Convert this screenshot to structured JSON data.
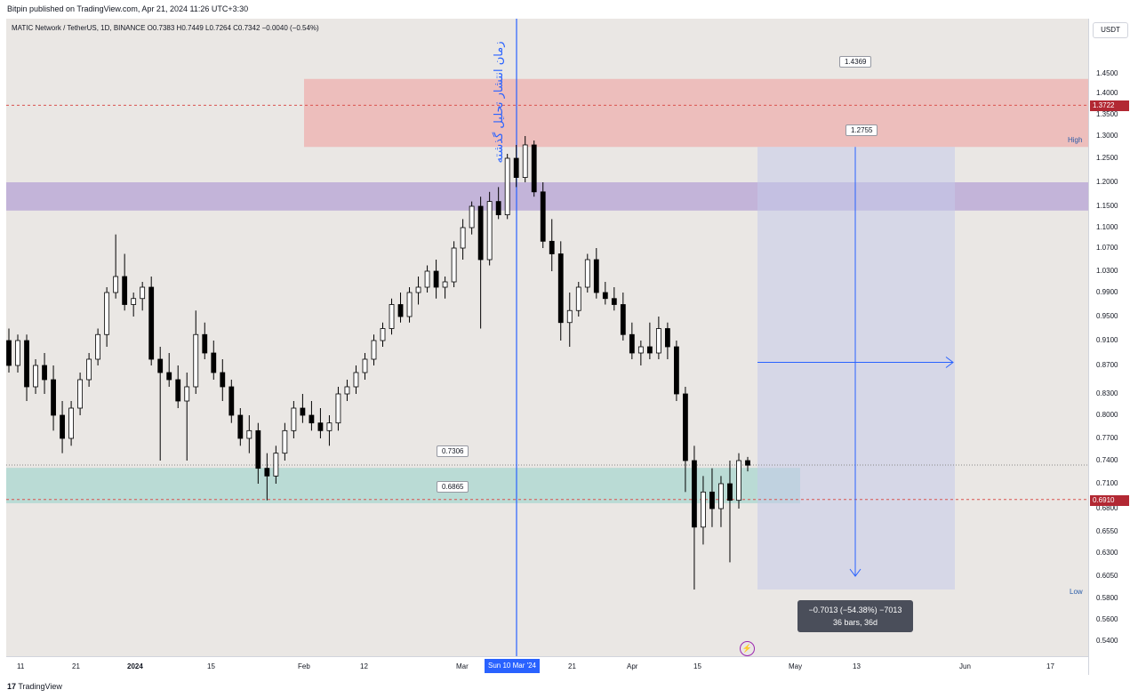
{
  "header": {
    "publisher": "Bitpin published on TradingView.com, Apr 21, 2024 11:26 UTC+3:30"
  },
  "legend": {
    "text": "MATIC Network / TetherUS, 1D, BINANCE  O0.7383  H0.7449  L0.7264  C0.7342  −0.0040 (−0.54%)"
  },
  "annotation": {
    "vertical_text": "زمان انتشار تحلیل گذشته",
    "date_badge": "Sun 10 Mar '24"
  },
  "price_axis": {
    "unit": "USDT",
    "ticks": [
      "1.4500",
      "1.4000",
      "1.3500",
      "1.3000",
      "1.2500",
      "1.2000",
      "1.1500",
      "1.1000",
      "1.0700",
      "1.0300",
      "0.9900",
      "0.9500",
      "0.9100",
      "0.8700",
      "0.8300",
      "0.8000",
      "0.7700",
      "0.7400",
      "0.7100",
      "0.6800",
      "0.6550",
      "0.6300",
      "0.6050",
      "0.5800",
      "0.5600",
      "0.5400"
    ],
    "current_red": "1.3722",
    "current_price": "0.6910",
    "high_label": "High",
    "low_label": "Low"
  },
  "time_axis": {
    "ticks": [
      "11",
      "21",
      "2024",
      "15",
      "Feb",
      "12",
      "Mar",
      "21",
      "Apr",
      "15",
      "May",
      "13",
      "Jun",
      "17"
    ]
  },
  "callouts": [
    "1.4369",
    "1.2755",
    "0.7306",
    "0.6865"
  ],
  "measure": {
    "line1": "−0.7013 (−54.38%) −7013",
    "line2": "36 bars, 36d"
  },
  "colors": {
    "up": "#ffffff",
    "down": "#000000",
    "red_zone": "#f28b8b",
    "purple_zone": "#9575cd",
    "green_zone": "#80cbc4",
    "measure_zone": "#c5cae9",
    "accent": "#2962ff"
  },
  "footer": {
    "brand": "TradingView"
  },
  "chart_data": {
    "type": "candlestick",
    "symbol": "MATICUSDT",
    "ylim": [
      0.53,
      1.48
    ],
    "candles": [
      [
        0.91,
        0.93,
        0.86,
        0.87
      ],
      [
        0.87,
        0.92,
        0.86,
        0.91
      ],
      [
        0.91,
        0.92,
        0.82,
        0.84
      ],
      [
        0.84,
        0.88,
        0.83,
        0.87
      ],
      [
        0.87,
        0.89,
        0.83,
        0.85
      ],
      [
        0.85,
        0.87,
        0.78,
        0.8
      ],
      [
        0.8,
        0.82,
        0.75,
        0.77
      ],
      [
        0.77,
        0.82,
        0.76,
        0.81
      ],
      [
        0.81,
        0.86,
        0.8,
        0.85
      ],
      [
        0.85,
        0.89,
        0.84,
        0.88
      ],
      [
        0.88,
        0.93,
        0.87,
        0.92
      ],
      [
        0.92,
        1.0,
        0.9,
        0.99
      ],
      [
        0.99,
        1.09,
        0.98,
        1.02
      ],
      [
        1.02,
        1.06,
        0.96,
        0.97
      ],
      [
        0.97,
        0.99,
        0.95,
        0.98
      ],
      [
        0.98,
        1.01,
        0.96,
        1.0
      ],
      [
        1.0,
        1.02,
        0.87,
        0.88
      ],
      [
        0.88,
        0.9,
        0.74,
        0.86
      ],
      [
        0.86,
        0.89,
        0.84,
        0.85
      ],
      [
        0.85,
        0.87,
        0.81,
        0.82
      ],
      [
        0.82,
        0.86,
        0.74,
        0.84
      ],
      [
        0.84,
        0.96,
        0.83,
        0.92
      ],
      [
        0.92,
        0.94,
        0.88,
        0.89
      ],
      [
        0.89,
        0.91,
        0.85,
        0.86
      ],
      [
        0.86,
        0.88,
        0.82,
        0.84
      ],
      [
        0.84,
        0.85,
        0.79,
        0.8
      ],
      [
        0.8,
        0.81,
        0.76,
        0.77
      ],
      [
        0.77,
        0.8,
        0.75,
        0.78
      ],
      [
        0.78,
        0.79,
        0.71,
        0.73
      ],
      [
        0.73,
        0.75,
        0.69,
        0.72
      ],
      [
        0.72,
        0.76,
        0.71,
        0.75
      ],
      [
        0.75,
        0.79,
        0.74,
        0.78
      ],
      [
        0.78,
        0.82,
        0.77,
        0.81
      ],
      [
        0.81,
        0.83,
        0.79,
        0.8
      ],
      [
        0.8,
        0.82,
        0.78,
        0.79
      ],
      [
        0.79,
        0.81,
        0.77,
        0.78
      ],
      [
        0.78,
        0.8,
        0.76,
        0.79
      ],
      [
        0.79,
        0.84,
        0.78,
        0.83
      ],
      [
        0.83,
        0.85,
        0.82,
        0.84
      ],
      [
        0.84,
        0.87,
        0.83,
        0.86
      ],
      [
        0.86,
        0.89,
        0.85,
        0.88
      ],
      [
        0.88,
        0.92,
        0.87,
        0.91
      ],
      [
        0.91,
        0.94,
        0.9,
        0.93
      ],
      [
        0.93,
        0.98,
        0.92,
        0.97
      ],
      [
        0.97,
        0.99,
        0.94,
        0.95
      ],
      [
        0.95,
        1.0,
        0.94,
        0.99
      ],
      [
        0.99,
        1.02,
        0.97,
        1.0
      ],
      [
        1.0,
        1.04,
        0.99,
        1.03
      ],
      [
        1.03,
        1.05,
        0.98,
        1.0
      ],
      [
        1.0,
        1.02,
        0.98,
        1.01
      ],
      [
        1.01,
        1.08,
        1.0,
        1.07
      ],
      [
        1.07,
        1.12,
        1.05,
        1.1
      ],
      [
        1.1,
        1.16,
        1.09,
        1.15
      ],
      [
        1.15,
        1.17,
        0.93,
        1.05
      ],
      [
        1.05,
        1.18,
        1.04,
        1.16
      ],
      [
        1.16,
        1.19,
        1.12,
        1.13
      ],
      [
        1.13,
        1.26,
        1.12,
        1.25
      ],
      [
        1.25,
        1.28,
        1.19,
        1.21
      ],
      [
        1.21,
        1.3,
        1.2,
        1.28
      ],
      [
        1.28,
        1.29,
        1.17,
        1.18
      ],
      [
        1.18,
        1.2,
        1.07,
        1.08
      ],
      [
        1.08,
        1.12,
        1.03,
        1.06
      ],
      [
        1.06,
        1.08,
        0.91,
        0.94
      ],
      [
        0.94,
        0.99,
        0.9,
        0.96
      ],
      [
        0.96,
        1.01,
        0.95,
        1.0
      ],
      [
        1.0,
        1.06,
        0.99,
        1.05
      ],
      [
        1.05,
        1.07,
        0.98,
        0.99
      ],
      [
        0.99,
        1.01,
        0.97,
        0.98
      ],
      [
        0.98,
        1.0,
        0.96,
        0.97
      ],
      [
        0.97,
        0.99,
        0.91,
        0.92
      ],
      [
        0.92,
        0.94,
        0.88,
        0.89
      ],
      [
        0.89,
        0.91,
        0.87,
        0.9
      ],
      [
        0.9,
        0.94,
        0.88,
        0.89
      ],
      [
        0.89,
        0.95,
        0.88,
        0.93
      ],
      [
        0.93,
        0.94,
        0.88,
        0.9
      ],
      [
        0.9,
        0.91,
        0.82,
        0.83
      ],
      [
        0.83,
        0.84,
        0.7,
        0.74
      ],
      [
        0.74,
        0.76,
        0.59,
        0.66
      ],
      [
        0.66,
        0.72,
        0.64,
        0.7
      ],
      [
        0.7,
        0.73,
        0.66,
        0.68
      ],
      [
        0.68,
        0.72,
        0.66,
        0.71
      ],
      [
        0.71,
        0.74,
        0.62,
        0.69
      ],
      [
        0.69,
        0.75,
        0.68,
        0.74
      ],
      [
        0.74,
        0.745,
        0.726,
        0.734
      ]
    ],
    "zones": [
      {
        "name": "red-zone",
        "from": 1.2755,
        "to": 1.4369
      },
      {
        "name": "purple-zone",
        "from": 1.14,
        "to": 1.2
      },
      {
        "name": "green-zone",
        "from": 0.6865,
        "to": 0.7306
      }
    ],
    "levels": {
      "red_dashed": 1.3722,
      "current": 0.691
    }
  }
}
